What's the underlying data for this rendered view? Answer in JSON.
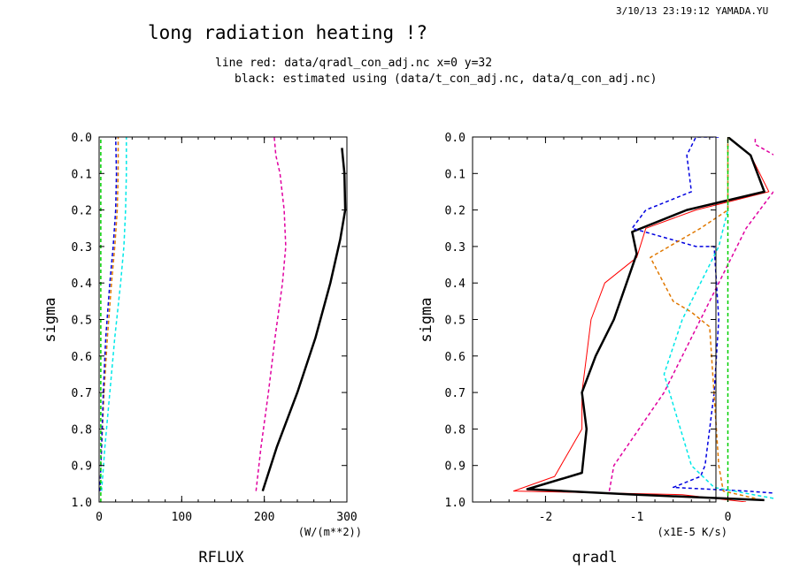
{
  "header": {
    "timestamp": "3/10/13 23:19:12 YAMADA.YU",
    "title": "long radiation heating !?",
    "line1": "line red: data/qradl_con_adj.nc x=0 y=32",
    "line2": "black: estimated using (data/t_con_adj.nc, data/q_con_adj.nc)"
  },
  "colors": {
    "black": "#000000",
    "red": "#ff0000",
    "blue": "#0000e0",
    "cyan": "#00e8e8",
    "orange": "#e07800",
    "magenta": "#e000a0",
    "green": "#00d000"
  },
  "chart_data": [
    {
      "type": "line",
      "xlabel": "RFLUX",
      "xunits": "(W/(m**2))",
      "ylabel": "sigma",
      "xlim": [
        0,
        300
      ],
      "ylim": [
        1.0,
        0.0
      ],
      "xticks": [
        "0",
        "100",
        "200",
        "300"
      ],
      "yticks": [
        "0.0",
        "0.1",
        "0.2",
        "0.3",
        "0.4",
        "0.5",
        "0.6",
        "0.7",
        "0.8",
        "0.9",
        "1.0"
      ],
      "series": [
        {
          "color": "black",
          "style": "solid",
          "width": 2.5,
          "x": [
            198,
            215,
            240,
            262,
            280,
            292,
            298,
            297,
            294
          ],
          "y": [
            0.97,
            0.85,
            0.7,
            0.55,
            0.4,
            0.28,
            0.2,
            0.1,
            0.03
          ]
        },
        {
          "color": "magenta",
          "style": "dashed",
          "width": 1.5,
          "x": [
            190,
            196,
            205,
            213,
            222,
            226,
            224,
            219,
            214,
            212
          ],
          "y": [
            0.97,
            0.85,
            0.7,
            0.55,
            0.4,
            0.3,
            0.2,
            0.1,
            0.05,
            0.0
          ]
        },
        {
          "color": "cyan",
          "style": "dashed",
          "width": 1.5,
          "x": [
            3,
            7,
            13,
            19,
            26,
            30,
            32,
            33,
            33
          ],
          "y": [
            0.97,
            0.85,
            0.7,
            0.55,
            0.4,
            0.3,
            0.2,
            0.1,
            0.0
          ]
        },
        {
          "color": "orange",
          "style": "dashed",
          "width": 1.5,
          "x": [
            1,
            3,
            6,
            10,
            15,
            19,
            22,
            23,
            23
          ],
          "y": [
            0.97,
            0.85,
            0.7,
            0.55,
            0.4,
            0.3,
            0.2,
            0.1,
            0.0
          ]
        },
        {
          "color": "blue",
          "style": "dashed",
          "width": 1.5,
          "x": [
            1,
            3,
            5,
            8,
            13,
            17,
            20,
            21,
            20
          ],
          "y": [
            0.97,
            0.85,
            0.7,
            0.55,
            0.4,
            0.3,
            0.2,
            0.1,
            0.0
          ]
        },
        {
          "color": "green",
          "style": "dashed",
          "width": 1.5,
          "x": [
            2,
            2
          ],
          "y": [
            1.0,
            0.0
          ]
        }
      ]
    },
    {
      "type": "line",
      "xlabel": "qradl",
      "xunits": "(x1E-5 K/s)",
      "ylabel": "sigma",
      "xlim": [
        -2.8,
        0.5
      ],
      "ylim": [
        1.0,
        0.0
      ],
      "xticks": [
        "-2",
        "-1",
        "0"
      ],
      "yticks": [
        "0.0",
        "0.1",
        "0.2",
        "0.3",
        "0.4",
        "0.5",
        "0.6",
        "0.7",
        "0.8",
        "0.9",
        "1.0"
      ],
      "series": [
        {
          "color": "red",
          "style": "solid",
          "width": 1,
          "x": [
            0.2,
            -0.5,
            -2.35,
            -1.9,
            -1.6,
            -1.6,
            -1.55,
            -1.5,
            -1.35,
            -1.0,
            -0.9,
            -0.35,
            0.45,
            0.25,
            0.0
          ],
          "y": [
            1.0,
            0.98,
            0.97,
            0.93,
            0.8,
            0.7,
            0.6,
            0.5,
            0.4,
            0.33,
            0.25,
            0.2,
            0.15,
            0.05,
            0.0
          ]
        },
        {
          "color": "black",
          "style": "solid",
          "width": 2.5,
          "x": [
            0.4,
            -1.0,
            -2.2,
            -1.6,
            -1.55,
            -1.6,
            -1.45,
            -1.25,
            -1.0,
            -1.05,
            -0.45,
            0.4,
            0.25,
            0.0
          ],
          "y": [
            0.995,
            0.98,
            0.965,
            0.92,
            0.8,
            0.7,
            0.6,
            0.5,
            0.32,
            0.26,
            0.2,
            0.15,
            0.05,
            0.0
          ]
        },
        {
          "color": "blue",
          "style": "dashed",
          "width": 1.5,
          "x": [
            1.3,
            0.2,
            -0.6,
            -0.3,
            -0.25,
            -0.2,
            -0.15,
            -0.1,
            -0.15,
            -0.35,
            -1.05,
            -0.9,
            -0.4,
            -0.45,
            -0.35,
            -0.1
          ],
          "y": [
            0.99,
            0.97,
            0.96,
            0.93,
            0.9,
            0.8,
            0.7,
            0.5,
            0.3,
            0.3,
            0.25,
            0.2,
            0.15,
            0.05,
            0.0,
            0.0
          ]
        },
        {
          "color": "cyan",
          "style": "dashed",
          "width": 1.5,
          "x": [
            0.5,
            -0.15,
            -0.4,
            -0.7,
            -0.5,
            -0.3,
            -0.1,
            0.0,
            0.0
          ],
          "y": [
            0.99,
            0.96,
            0.9,
            0.65,
            0.5,
            0.4,
            0.3,
            0.2,
            0.0
          ]
        },
        {
          "color": "orange",
          "style": "dashed",
          "width": 1.5,
          "x": [
            0.3,
            -0.05,
            -0.1,
            -0.2,
            -0.4,
            -0.6,
            -0.85,
            -0.3,
            0.0,
            0.0
          ],
          "y": [
            0.99,
            0.97,
            0.9,
            0.52,
            0.48,
            0.45,
            0.33,
            0.25,
            0.2,
            0.0
          ]
        },
        {
          "color": "magenta",
          "style": "dashed",
          "width": 1.5,
          "x": [
            -1.3,
            -1.25,
            -0.7,
            -0.3,
            0.0,
            0.2,
            0.5,
            0.65,
            0.3,
            0.3
          ],
          "y": [
            0.97,
            0.9,
            0.7,
            0.5,
            0.35,
            0.25,
            0.15,
            0.07,
            0.02,
            0.0
          ]
        },
        {
          "color": "green",
          "style": "dashed",
          "width": 1.5,
          "x": [
            0.0,
            0.0
          ],
          "y": [
            1.0,
            0.0
          ]
        }
      ]
    }
  ]
}
